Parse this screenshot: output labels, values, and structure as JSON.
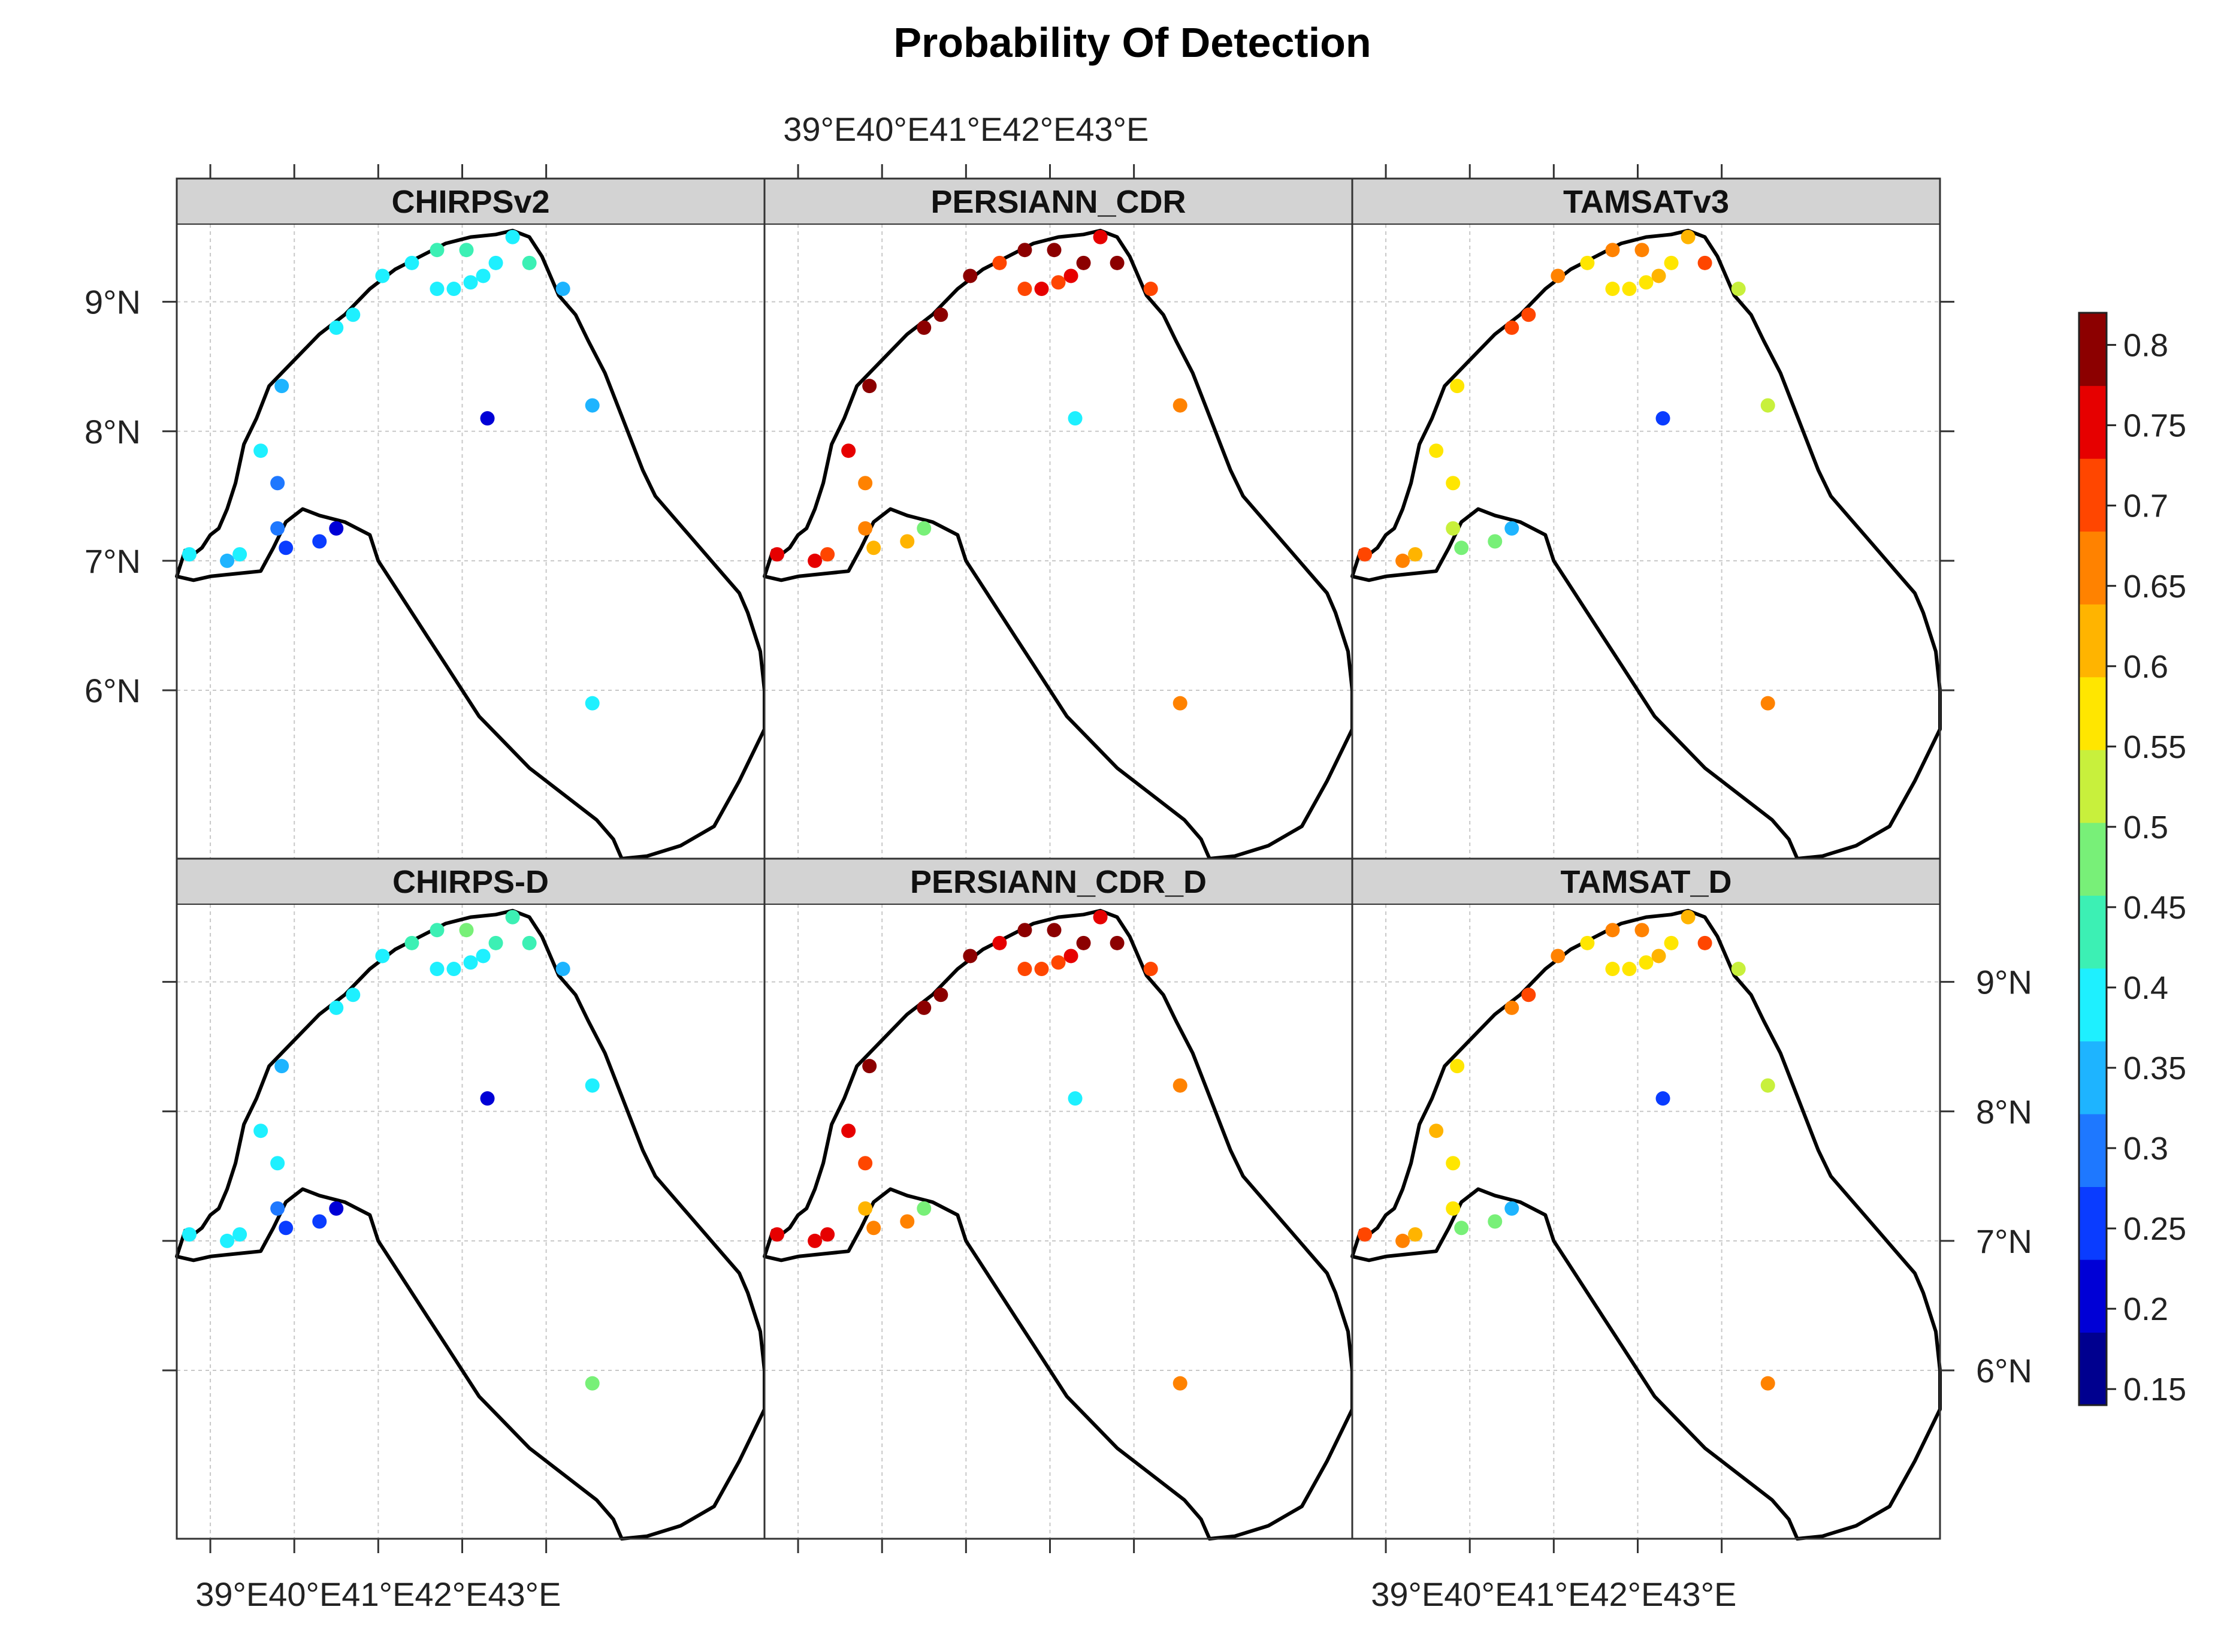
{
  "title": "Probability Of Detection",
  "chart_data": {
    "type": "scatter",
    "layout": "3 columns x 2 rows of map panels",
    "lon_range": [
      38.6,
      45.6
    ],
    "lat_range": [
      4.7,
      9.6
    ],
    "x_ticks": [
      39,
      40,
      41,
      42,
      43
    ],
    "y_ticks": [
      6,
      7,
      8,
      9
    ],
    "x_tick_labels": [
      "39°E",
      "40°E",
      "41°E",
      "42°E",
      "43°E"
    ],
    "y_tick_labels": [
      "6°N",
      "7°N",
      "8°N",
      "9°N"
    ],
    "x_tick_labels_top_text": "39°E40°E41°E42°E43°E",
    "x_tick_labels_bottom_text": "39°E40°E41°E42°E43°E",
    "grid": true,
    "boundary": [
      [
        38.6,
        6.88
      ],
      [
        38.7,
        7.08
      ],
      [
        38.8,
        7.05
      ],
      [
        38.9,
        7.1
      ],
      [
        39.0,
        7.2
      ],
      [
        39.1,
        7.25
      ],
      [
        39.2,
        7.4
      ],
      [
        39.3,
        7.6
      ],
      [
        39.4,
        7.9
      ],
      [
        39.55,
        8.1
      ],
      [
        39.7,
        8.35
      ],
      [
        40.0,
        8.55
      ],
      [
        40.3,
        8.75
      ],
      [
        40.6,
        8.9
      ],
      [
        40.9,
        9.1
      ],
      [
        41.2,
        9.25
      ],
      [
        41.5,
        9.35
      ],
      [
        41.8,
        9.45
      ],
      [
        42.1,
        9.5
      ],
      [
        42.4,
        9.52
      ],
      [
        42.6,
        9.55
      ],
      [
        42.8,
        9.5
      ],
      [
        42.95,
        9.35
      ],
      [
        43.05,
        9.2
      ],
      [
        43.15,
        9.05
      ],
      [
        43.35,
        8.9
      ],
      [
        43.5,
        8.7
      ],
      [
        43.7,
        8.45
      ],
      [
        43.85,
        8.2
      ],
      [
        44.0,
        7.95
      ],
      [
        44.15,
        7.7
      ],
      [
        44.3,
        7.5
      ],
      [
        44.5,
        7.35
      ],
      [
        44.7,
        7.2
      ],
      [
        44.9,
        7.05
      ],
      [
        45.1,
        6.9
      ],
      [
        45.3,
        6.75
      ],
      [
        45.4,
        6.6
      ],
      [
        45.55,
        6.3
      ],
      [
        45.6,
        6.0
      ],
      [
        45.6,
        5.7
      ],
      [
        45.3,
        5.3
      ],
      [
        45.0,
        4.95
      ],
      [
        44.6,
        4.8
      ],
      [
        44.2,
        4.72
      ],
      [
        43.9,
        4.7
      ],
      [
        43.8,
        4.85
      ],
      [
        43.6,
        5.0
      ],
      [
        43.4,
        5.1
      ],
      [
        43.1,
        5.25
      ],
      [
        42.8,
        5.4
      ],
      [
        42.5,
        5.6
      ],
      [
        42.2,
        5.8
      ],
      [
        42.0,
        6.0
      ],
      [
        41.8,
        6.2
      ],
      [
        41.6,
        6.4
      ],
      [
        41.4,
        6.6
      ],
      [
        41.2,
        6.8
      ],
      [
        41.0,
        7.0
      ],
      [
        40.9,
        7.2
      ],
      [
        40.6,
        7.3
      ],
      [
        40.3,
        7.35
      ],
      [
        40.1,
        7.4
      ],
      [
        39.9,
        7.3
      ],
      [
        39.75,
        7.1
      ],
      [
        39.6,
        6.92
      ],
      [
        39.3,
        6.9
      ],
      [
        39.0,
        6.88
      ],
      [
        38.8,
        6.85
      ],
      [
        38.6,
        6.88
      ]
    ],
    "stations": [
      {
        "lon": 38.75,
        "lat": 7.05
      },
      {
        "lon": 39.2,
        "lat": 7.0
      },
      {
        "lon": 39.35,
        "lat": 7.05
      },
      {
        "lon": 39.8,
        "lat": 7.25
      },
      {
        "lon": 39.9,
        "lat": 7.1
      },
      {
        "lon": 40.3,
        "lat": 7.15
      },
      {
        "lon": 40.5,
        "lat": 7.25
      },
      {
        "lon": 39.6,
        "lat": 7.85
      },
      {
        "lon": 39.8,
        "lat": 7.6
      },
      {
        "lon": 39.85,
        "lat": 8.35
      },
      {
        "lon": 40.5,
        "lat": 8.8
      },
      {
        "lon": 40.7,
        "lat": 8.9
      },
      {
        "lon": 41.05,
        "lat": 9.2
      },
      {
        "lon": 41.4,
        "lat": 9.3
      },
      {
        "lon": 41.7,
        "lat": 9.4
      },
      {
        "lon": 41.7,
        "lat": 9.1
      },
      {
        "lon": 41.9,
        "lat": 9.1
      },
      {
        "lon": 42.05,
        "lat": 9.4
      },
      {
        "lon": 42.1,
        "lat": 9.15
      },
      {
        "lon": 42.25,
        "lat": 9.2
      },
      {
        "lon": 42.4,
        "lat": 9.3
      },
      {
        "lon": 42.6,
        "lat": 9.5
      },
      {
        "lon": 42.8,
        "lat": 9.3
      },
      {
        "lon": 43.2,
        "lat": 9.1
      },
      {
        "lon": 42.3,
        "lat": 8.1
      },
      {
        "lon": 43.55,
        "lat": 8.2
      },
      {
        "lon": 43.55,
        "lat": 5.9
      }
    ],
    "panels": [
      {
        "name": "CHIRPSv2",
        "pod": [
          0.38,
          0.36,
          0.37,
          0.28,
          0.27,
          0.26,
          0.23,
          0.37,
          0.3,
          0.33,
          0.38,
          0.39,
          0.4,
          0.41,
          0.42,
          0.38,
          0.38,
          0.43,
          0.39,
          0.4,
          0.39,
          0.41,
          0.43,
          0.33,
          0.23,
          0.35,
          0.4
        ]
      },
      {
        "name": "PERSIANN_CDR",
        "pod": [
          0.77,
          0.74,
          0.72,
          0.65,
          0.62,
          0.62,
          0.49,
          0.76,
          0.68,
          0.78,
          0.78,
          0.8,
          0.8,
          0.72,
          0.78,
          0.72,
          0.73,
          0.78,
          0.72,
          0.73,
          0.79,
          0.77,
          0.8,
          0.7,
          0.4,
          0.65,
          0.64
        ]
      },
      {
        "name": "TAMSATv3",
        "pod": [
          0.71,
          0.64,
          0.63,
          0.54,
          0.5,
          0.5,
          0.33,
          0.59,
          0.59,
          0.58,
          0.69,
          0.7,
          0.66,
          0.59,
          0.66,
          0.59,
          0.59,
          0.66,
          0.59,
          0.6,
          0.59,
          0.62,
          0.7,
          0.53,
          0.27,
          0.53,
          0.66
        ]
      },
      {
        "name": "CHIRPS-D",
        "pod": [
          0.37,
          0.38,
          0.39,
          0.28,
          0.27,
          0.26,
          0.23,
          0.39,
          0.38,
          0.33,
          0.38,
          0.41,
          0.41,
          0.42,
          0.44,
          0.38,
          0.38,
          0.46,
          0.4,
          0.41,
          0.42,
          0.42,
          0.45,
          0.33,
          0.22,
          0.38,
          0.46
        ]
      },
      {
        "name": "PERSIANN_CDR_D",
        "pod": [
          0.77,
          0.74,
          0.75,
          0.62,
          0.64,
          0.64,
          0.47,
          0.77,
          0.69,
          0.78,
          0.79,
          0.79,
          0.79,
          0.73,
          0.79,
          0.72,
          0.72,
          0.79,
          0.72,
          0.73,
          0.79,
          0.77,
          0.79,
          0.7,
          0.4,
          0.65,
          0.64
        ]
      },
      {
        "name": "TAMSAT_D",
        "pod": [
          0.71,
          0.64,
          0.63,
          0.55,
          0.5,
          0.5,
          0.33,
          0.6,
          0.59,
          0.58,
          0.68,
          0.7,
          0.66,
          0.59,
          0.66,
          0.59,
          0.59,
          0.66,
          0.59,
          0.6,
          0.59,
          0.62,
          0.7,
          0.53,
          0.27,
          0.53,
          0.66
        ]
      }
    ],
    "colorbar": {
      "min": 0.14,
      "max": 0.82,
      "ticks": [
        0.15,
        0.2,
        0.25,
        0.3,
        0.35,
        0.4,
        0.45,
        0.5,
        0.55,
        0.6,
        0.65,
        0.7,
        0.75,
        0.8
      ],
      "tick_labels": [
        "0.15",
        "0.2",
        "0.25",
        "0.3",
        "0.35",
        "0.4",
        "0.45",
        "0.5",
        "0.55",
        "0.6",
        "0.65",
        "0.7",
        "0.75",
        "0.8"
      ],
      "colors": [
        "#00008f",
        "#0000d6",
        "#0a3cff",
        "#1e78ff",
        "#1eb4ff",
        "#1ef0ff",
        "#3cf0b4",
        "#78f078",
        "#c8f03c",
        "#ffe600",
        "#ffb400",
        "#ff8200",
        "#ff4600",
        "#e60000",
        "#8c0000"
      ]
    }
  }
}
